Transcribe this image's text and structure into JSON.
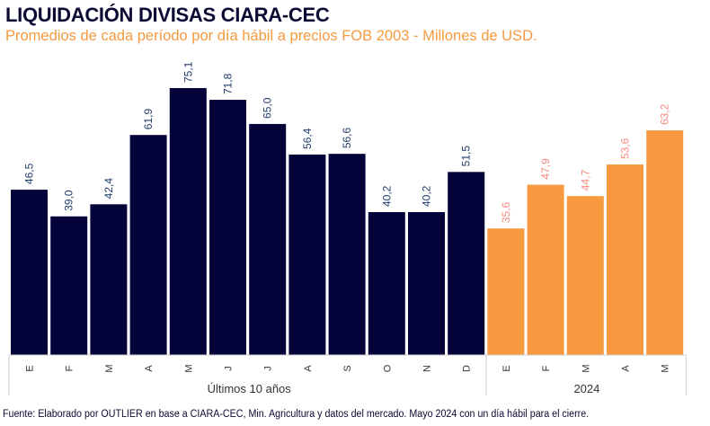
{
  "title": "LIQUIDACIÓN DIVISAS CIARA-CEC",
  "subtitle": "Promedios de cada período por día hábil a precios FOB 2003 - Millones de USD.",
  "source": "Fuente: Elaborado por OUTLIER en base a CIARA-CEC, Min. Agricultura y datos del mercado. Mayo 2024 con un día hábil para el cierre.",
  "colors": {
    "historical": "#03033a",
    "current": "#f6993f",
    "historical_label": "#1f3a6b",
    "current_label": "#f58a7e",
    "title": "#0b0a33"
  },
  "chart_data": {
    "type": "bar",
    "categories": [
      "E",
      "F",
      "M",
      "A",
      "M",
      "J",
      "J",
      "A",
      "S",
      "O",
      "N",
      "D",
      "E",
      "F",
      "M",
      "A",
      "M"
    ],
    "groups": [
      {
        "label": "Últimos 10 años",
        "count": 12
      },
      {
        "label": "2024",
        "count": 5
      }
    ],
    "values": [
      46.5,
      39.0,
      42.4,
      61.9,
      75.1,
      71.8,
      65.0,
      56.4,
      56.6,
      40.2,
      40.2,
      51.5,
      35.6,
      47.9,
      44.7,
      53.6,
      63.2
    ],
    "data_labels": [
      "46,5",
      "39,0",
      "42,4",
      "61,9",
      "75,1",
      "71,8",
      "65,0",
      "56,4",
      "56,6",
      "40,2",
      "40,2",
      "51,5",
      "35,6",
      "47,9",
      "44,7",
      "53,6",
      "63,2"
    ],
    "ylim": [
      0,
      75.1
    ],
    "grid": false
  }
}
